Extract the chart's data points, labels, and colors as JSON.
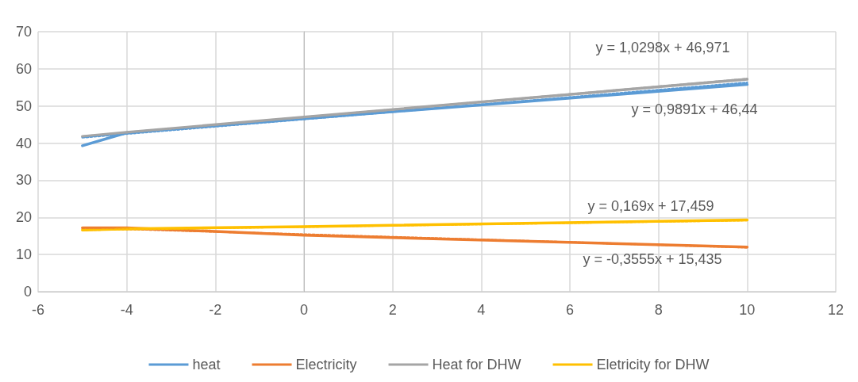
{
  "chart_data": {
    "type": "line",
    "xlim": [
      -6,
      12
    ],
    "xticks": [
      -6,
      -4,
      -2,
      0,
      2,
      4,
      6,
      8,
      10,
      12
    ],
    "ylim": [
      0,
      70
    ],
    "yticks": [
      0,
      10,
      20,
      30,
      40,
      50,
      60,
      70
    ],
    "grid": true,
    "legend": "bottom",
    "marker": "none",
    "line_style": "solid",
    "series": [
      {
        "name": "heat",
        "color": "#5b9bd5",
        "x": [
          -5,
          -4,
          0,
          10
        ],
        "values": [
          39.3,
          42.8,
          46.6,
          55.8
        ]
      },
      {
        "name": "Electricity",
        "color": "#ed7d31",
        "x": [
          -5,
          -4,
          0,
          10
        ],
        "values": [
          17.2,
          17.2,
          15.2,
          12.0
        ]
      },
      {
        "name": "Heat for DHW",
        "color": "#a5a5a5",
        "x": [
          -5,
          -4,
          0,
          10
        ],
        "values": [
          41.8,
          42.9,
          47.0,
          57.2
        ]
      },
      {
        "name": "Eletricity for DHW",
        "color": "#ffc000",
        "x": [
          -5,
          -4,
          0,
          10
        ],
        "values": [
          16.6,
          16.9,
          17.5,
          19.3
        ]
      },
      {
        "color": "#5b9bd5",
        "x": [
          -5,
          10
        ],
        "values": [
          41.5,
          56.3
        ],
        "line_style": "dotted"
      },
      {
        "color": "#a5a5a5",
        "x": [
          -5,
          10
        ],
        "values": [
          41.8,
          57.3
        ],
        "line_style": "dotted"
      },
      {
        "color": "#ed7d31",
        "x": [
          -5,
          10
        ],
        "values": [
          17.2,
          11.9
        ],
        "line_style": "dotted"
      },
      {
        "color": "#ffc000",
        "x": [
          -5,
          10
        ],
        "values": [
          16.6,
          19.2
        ],
        "line_style": "dotted"
      }
    ],
    "annotations": [
      "y = 1,0298x + 46,971",
      "y = 0,9891x + 46,44",
      "y = 0,169x + 17,459",
      "y = -0,3555x + 15,435"
    ]
  }
}
